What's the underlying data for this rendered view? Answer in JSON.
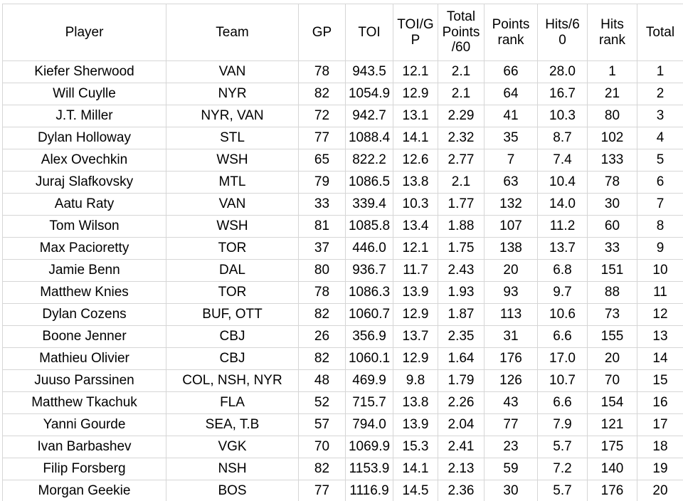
{
  "colors": {
    "grid_line": "#d6d6d6",
    "text": "#000000",
    "background": "#ffffff"
  },
  "table": {
    "columns": [
      {
        "key": "player",
        "label": "Player"
      },
      {
        "key": "team",
        "label": "Team"
      },
      {
        "key": "gp",
        "label": "GP"
      },
      {
        "key": "toi",
        "label": "TOI"
      },
      {
        "key": "toi_per_gp",
        "label": "TOI/G\nP"
      },
      {
        "key": "total_points_per_60",
        "label": "Total\nPoints\n/60"
      },
      {
        "key": "points_rank",
        "label": "Points\nrank"
      },
      {
        "key": "hits_per_60",
        "label": "Hits/6\n0"
      },
      {
        "key": "hits_rank",
        "label": "Hits\nrank"
      },
      {
        "key": "total",
        "label": "Total"
      }
    ]
  },
  "chart_data": {
    "type": "table",
    "columns": [
      "Player",
      "Team",
      "GP",
      "TOI",
      "TOI/GP",
      "Total Points/60",
      "Points rank",
      "Hits/60",
      "Hits rank",
      "Total"
    ],
    "rows": [
      [
        "Kiefer Sherwood",
        "VAN",
        "78",
        "943.5",
        "12.1",
        "2.1",
        "66",
        "28.0",
        "1",
        "1"
      ],
      [
        "Will Cuylle",
        "NYR",
        "82",
        "1054.9",
        "12.9",
        "2.1",
        "64",
        "16.7",
        "21",
        "2"
      ],
      [
        "J.T. Miller",
        "NYR, VAN",
        "72",
        "942.7",
        "13.1",
        "2.29",
        "41",
        "10.3",
        "80",
        "3"
      ],
      [
        "Dylan Holloway",
        "STL",
        "77",
        "1088.4",
        "14.1",
        "2.32",
        "35",
        "8.7",
        "102",
        "4"
      ],
      [
        "Alex Ovechkin",
        "WSH",
        "65",
        "822.2",
        "12.6",
        "2.77",
        "7",
        "7.4",
        "133",
        "5"
      ],
      [
        "Juraj Slafkovsky",
        "MTL",
        "79",
        "1086.5",
        "13.8",
        "2.1",
        "63",
        "10.4",
        "78",
        "6"
      ],
      [
        "Aatu Raty",
        "VAN",
        "33",
        "339.4",
        "10.3",
        "1.77",
        "132",
        "14.0",
        "30",
        "7"
      ],
      [
        "Tom Wilson",
        "WSH",
        "81",
        "1085.8",
        "13.4",
        "1.88",
        "107",
        "11.2",
        "60",
        "8"
      ],
      [
        "Max Pacioretty",
        "TOR",
        "37",
        "446.0",
        "12.1",
        "1.75",
        "138",
        "13.7",
        "33",
        "9"
      ],
      [
        "Jamie Benn",
        "DAL",
        "80",
        "936.7",
        "11.7",
        "2.43",
        "20",
        "6.8",
        "151",
        "10"
      ],
      [
        "Matthew Knies",
        "TOR",
        "78",
        "1086.3",
        "13.9",
        "1.93",
        "93",
        "9.7",
        "88",
        "11"
      ],
      [
        "Dylan Cozens",
        "BUF, OTT",
        "82",
        "1060.7",
        "12.9",
        "1.87",
        "113",
        "10.6",
        "73",
        "12"
      ],
      [
        "Boone Jenner",
        "CBJ",
        "26",
        "356.9",
        "13.7",
        "2.35",
        "31",
        "6.6",
        "155",
        "13"
      ],
      [
        "Mathieu Olivier",
        "CBJ",
        "82",
        "1060.1",
        "12.9",
        "1.64",
        "176",
        "17.0",
        "20",
        "14"
      ],
      [
        "Juuso Parssinen",
        "COL, NSH, NYR",
        "48",
        "469.9",
        "9.8",
        "1.79",
        "126",
        "10.7",
        "70",
        "15"
      ],
      [
        "Matthew Tkachuk",
        "FLA",
        "52",
        "715.7",
        "13.8",
        "2.26",
        "43",
        "6.6",
        "154",
        "16"
      ],
      [
        "Yanni Gourde",
        "SEA, T.B",
        "57",
        "794.0",
        "13.9",
        "2.04",
        "77",
        "7.9",
        "121",
        "17"
      ],
      [
        "Ivan Barbashev",
        "VGK",
        "70",
        "1069.9",
        "15.3",
        "2.41",
        "23",
        "5.7",
        "175",
        "18"
      ],
      [
        "Filip Forsberg",
        "NSH",
        "82",
        "1153.9",
        "14.1",
        "2.13",
        "59",
        "7.2",
        "140",
        "19"
      ],
      [
        "Morgan Geekie",
        "BOS",
        "77",
        "1116.9",
        "14.5",
        "2.36",
        "30",
        "5.7",
        "176",
        "20"
      ]
    ]
  }
}
